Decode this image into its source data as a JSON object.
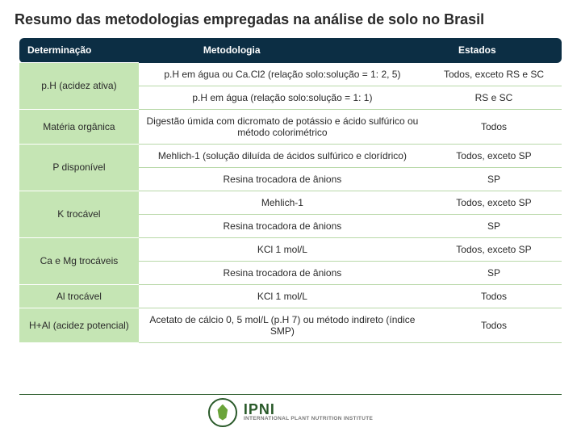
{
  "title": "Resumo das metodologias empregadas na análise de solo no Brasil",
  "columns": [
    "Determinação",
    "Metodologia",
    "Estados"
  ],
  "colors": {
    "header_bg": "#0c2e44",
    "header_text": "#ffffff",
    "det_bg": "#c5e5b4",
    "cell_border": "#b8d8a8",
    "text": "#2a2a2a",
    "footer_line": "#2a5a2a",
    "logo_green": "#6ba43a"
  },
  "fonts": {
    "title_size_pt": 14,
    "cell_size_pt": 9,
    "header_size_pt": 9
  },
  "rows": [
    {
      "det": "p.H (acidez ativa)",
      "sub": [
        {
          "met": "p.H em água ou Ca.Cl2 (relação solo:solução = 1: 2, 5)",
          "est": "Todos, exceto RS e SC"
        },
        {
          "met": "p.H em água (relação solo:solução = 1: 1)",
          "est": "RS e SC"
        }
      ]
    },
    {
      "det": "Matéria orgânica",
      "sub": [
        {
          "met": "Digestão úmida com dicromato de potássio e ácido sulfúrico ou método colorimétrico",
          "est": "Todos"
        }
      ]
    },
    {
      "det": "P disponível",
      "sub": [
        {
          "met": "Mehlich-1 (solução diluída de ácidos sulfúrico e clorídrico)",
          "est": "Todos, exceto SP"
        },
        {
          "met": "Resina trocadora de ânions",
          "est": "SP"
        }
      ]
    },
    {
      "det": "K trocável",
      "sub": [
        {
          "met": "Mehlich-1",
          "est": "Todos, exceto SP"
        },
        {
          "met": "Resina trocadora de ânions",
          "est": "SP"
        }
      ]
    },
    {
      "det": "Ca e Mg trocáveis",
      "sub": [
        {
          "met": "KCl 1 mol/L",
          "est": "Todos, exceto SP"
        },
        {
          "met": "Resina trocadora de ânions",
          "est": "SP"
        }
      ]
    },
    {
      "det": "Al trocável",
      "sub": [
        {
          "met": "KCl 1 mol/L",
          "est": "Todos"
        }
      ]
    },
    {
      "det": "H+Al (acidez potencial)",
      "sub": [
        {
          "met": "Acetato de cálcio 0, 5 mol/L (p.H 7) ou método indireto (índice SMP)",
          "est": "Todos"
        }
      ]
    }
  ],
  "footer": {
    "logo_main": "IPNI",
    "logo_sub": "INTERNATIONAL PLANT NUTRITION INSTITUTE"
  }
}
